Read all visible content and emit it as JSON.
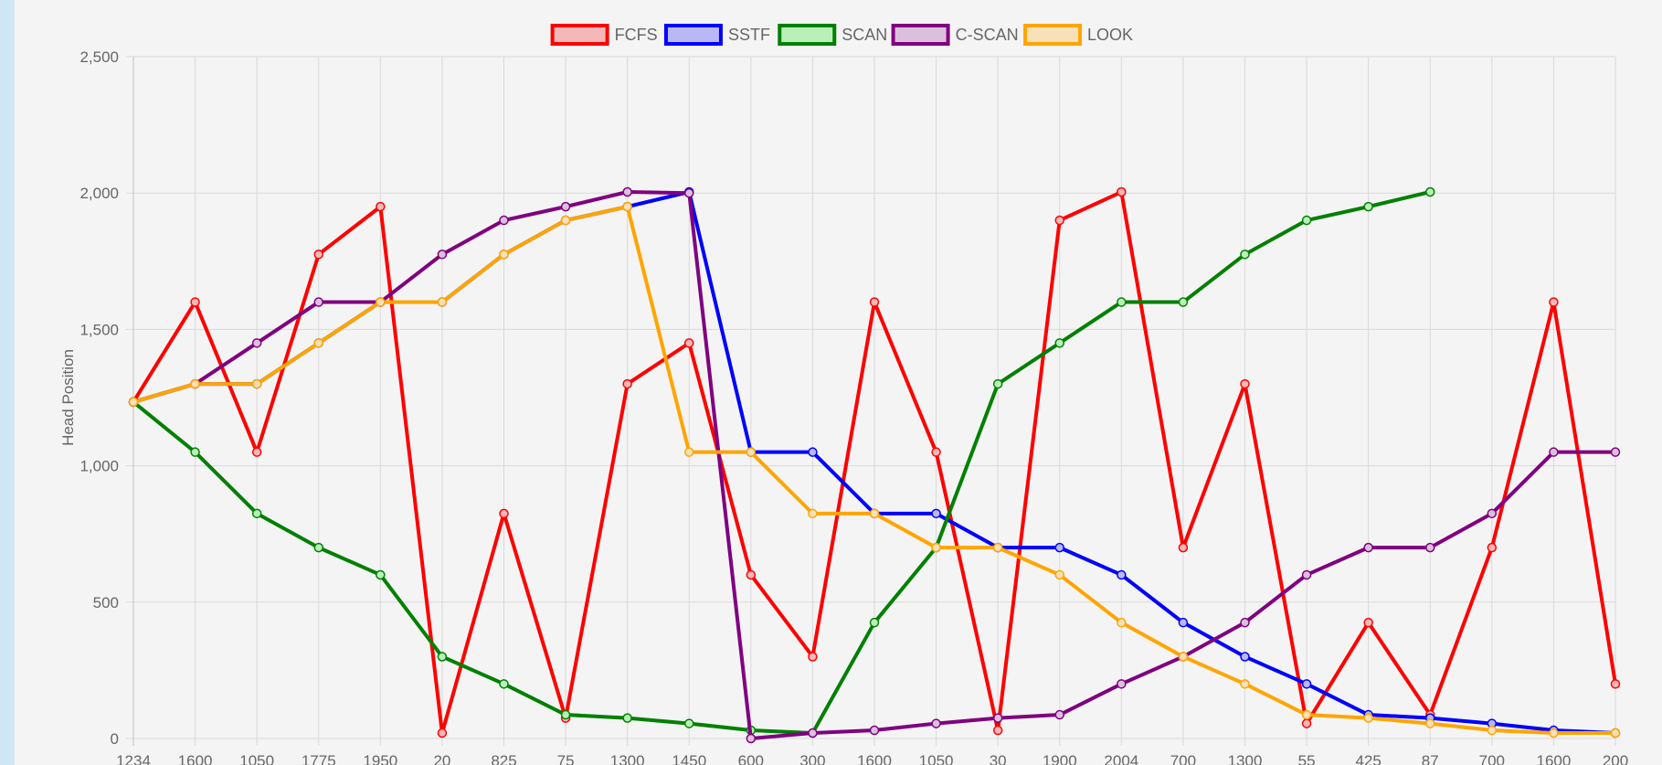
{
  "chart_data": {
    "type": "line",
    "ylabel": "Head Position",
    "ylim": [
      0,
      2500
    ],
    "y_ticks": [
      0,
      500,
      1000,
      1500,
      2000,
      2500
    ],
    "y_tick_labels": [
      "0",
      "500",
      "1,000",
      "1,500",
      "2,000",
      "2,500"
    ],
    "grid": true,
    "legend_position": "top",
    "categories": [
      "1234",
      "1600",
      "1050",
      "1775",
      "1950",
      "20",
      "825",
      "75",
      "1300",
      "1450",
      "600",
      "300",
      "1600",
      "1050",
      "30",
      "1900",
      "2004",
      "700",
      "1300",
      "55",
      "425",
      "87",
      "700",
      "1600",
      "200"
    ],
    "series": [
      {
        "name": "FCFS",
        "color": "#ff0000",
        "fill": "#f5b8b8",
        "values": [
          1234,
          1600,
          1050,
          1775,
          1950,
          20,
          825,
          75,
          1300,
          1450,
          600,
          300,
          1600,
          1050,
          30,
          1900,
          2004,
          700,
          1300,
          55,
          425,
          87,
          700,
          1600,
          200
        ]
      },
      {
        "name": "SSTF",
        "color": "#0000ff",
        "fill": "#b8b8f5",
        "values": [
          1234,
          1300,
          1300,
          1450,
          1600,
          1600,
          1775,
          1900,
          1950,
          2004,
          1050,
          1050,
          825,
          825,
          700,
          700,
          600,
          425,
          300,
          200,
          87,
          75,
          55,
          30,
          20
        ]
      },
      {
        "name": "SCAN",
        "color": "#008000",
        "fill": "#b8f0b8",
        "values": [
          1234,
          1050,
          825,
          700,
          600,
          300,
          200,
          87,
          75,
          55,
          30,
          20,
          425,
          700,
          1300,
          1450,
          1600,
          1600,
          1775,
          1900,
          1950,
          2004,
          null,
          null,
          null
        ]
      },
      {
        "name": "C-SCAN",
        "color": "#800080",
        "fill": "#dcbfdc",
        "values": [
          1234,
          1300,
          1450,
          1600,
          1600,
          1775,
          1900,
          1950,
          2004,
          2000,
          0,
          20,
          30,
          55,
          75,
          87,
          200,
          300,
          425,
          600,
          700,
          700,
          825,
          1050,
          1050
        ]
      },
      {
        "name": "LOOK",
        "color": "#ffa500",
        "fill": "#f8e0b8",
        "values": [
          1234,
          1300,
          1300,
          1450,
          1600,
          1600,
          1775,
          1900,
          1950,
          1050,
          1050,
          825,
          825,
          700,
          700,
          600,
          425,
          300,
          200,
          87,
          75,
          55,
          30,
          20,
          20
        ]
      }
    ]
  }
}
